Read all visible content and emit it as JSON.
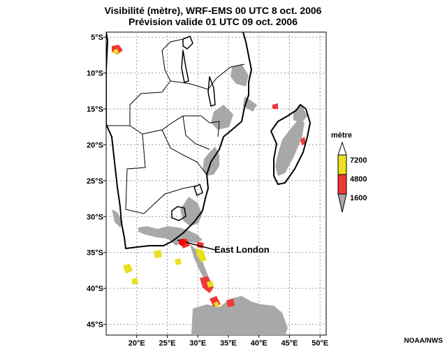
{
  "title": {
    "line1": "Visibilité (mètre), WRF-EMS 00 UTC 8 oct. 2006",
    "line2": "Prévision valide 01 UTC 09 oct. 2006"
  },
  "map": {
    "lon_range": [
      15,
      51
    ],
    "lat_range": [
      -46.5,
      -4.3
    ],
    "lat_ticks": [
      {
        "value": -5,
        "label": "5°S"
      },
      {
        "value": -10,
        "label": "10°S"
      },
      {
        "value": -15,
        "label": "15°S"
      },
      {
        "value": -20,
        "label": "20°S"
      },
      {
        "value": -25,
        "label": "25°S"
      },
      {
        "value": -30,
        "label": "30°S"
      },
      {
        "value": -35,
        "label": "35°S"
      },
      {
        "value": -40,
        "label": "40°S"
      },
      {
        "value": -45,
        "label": "45°S"
      }
    ],
    "lon_ticks": [
      {
        "value": 20,
        "label": "20°E"
      },
      {
        "value": 25,
        "label": "25°E"
      },
      {
        "value": 30,
        "label": "30°E"
      },
      {
        "value": 35,
        "label": "35°E"
      },
      {
        "value": 40,
        "label": "40°E"
      },
      {
        "value": 45,
        "label": "45°E"
      },
      {
        "value": 50,
        "label": "50°E"
      }
    ],
    "grid": true,
    "marker": {
      "label": "East London",
      "lon": 27.9,
      "lat": -33.0,
      "color": "#ff0000"
    }
  },
  "legend": {
    "title": "mètre",
    "entries": [
      {
        "label": "7200",
        "color": "#e8e020"
      },
      {
        "label": "4800",
        "color": "#f03838"
      },
      {
        "label": "1600",
        "color": "#a8a8a8"
      }
    ]
  },
  "credit": "NOAA/NWS"
}
